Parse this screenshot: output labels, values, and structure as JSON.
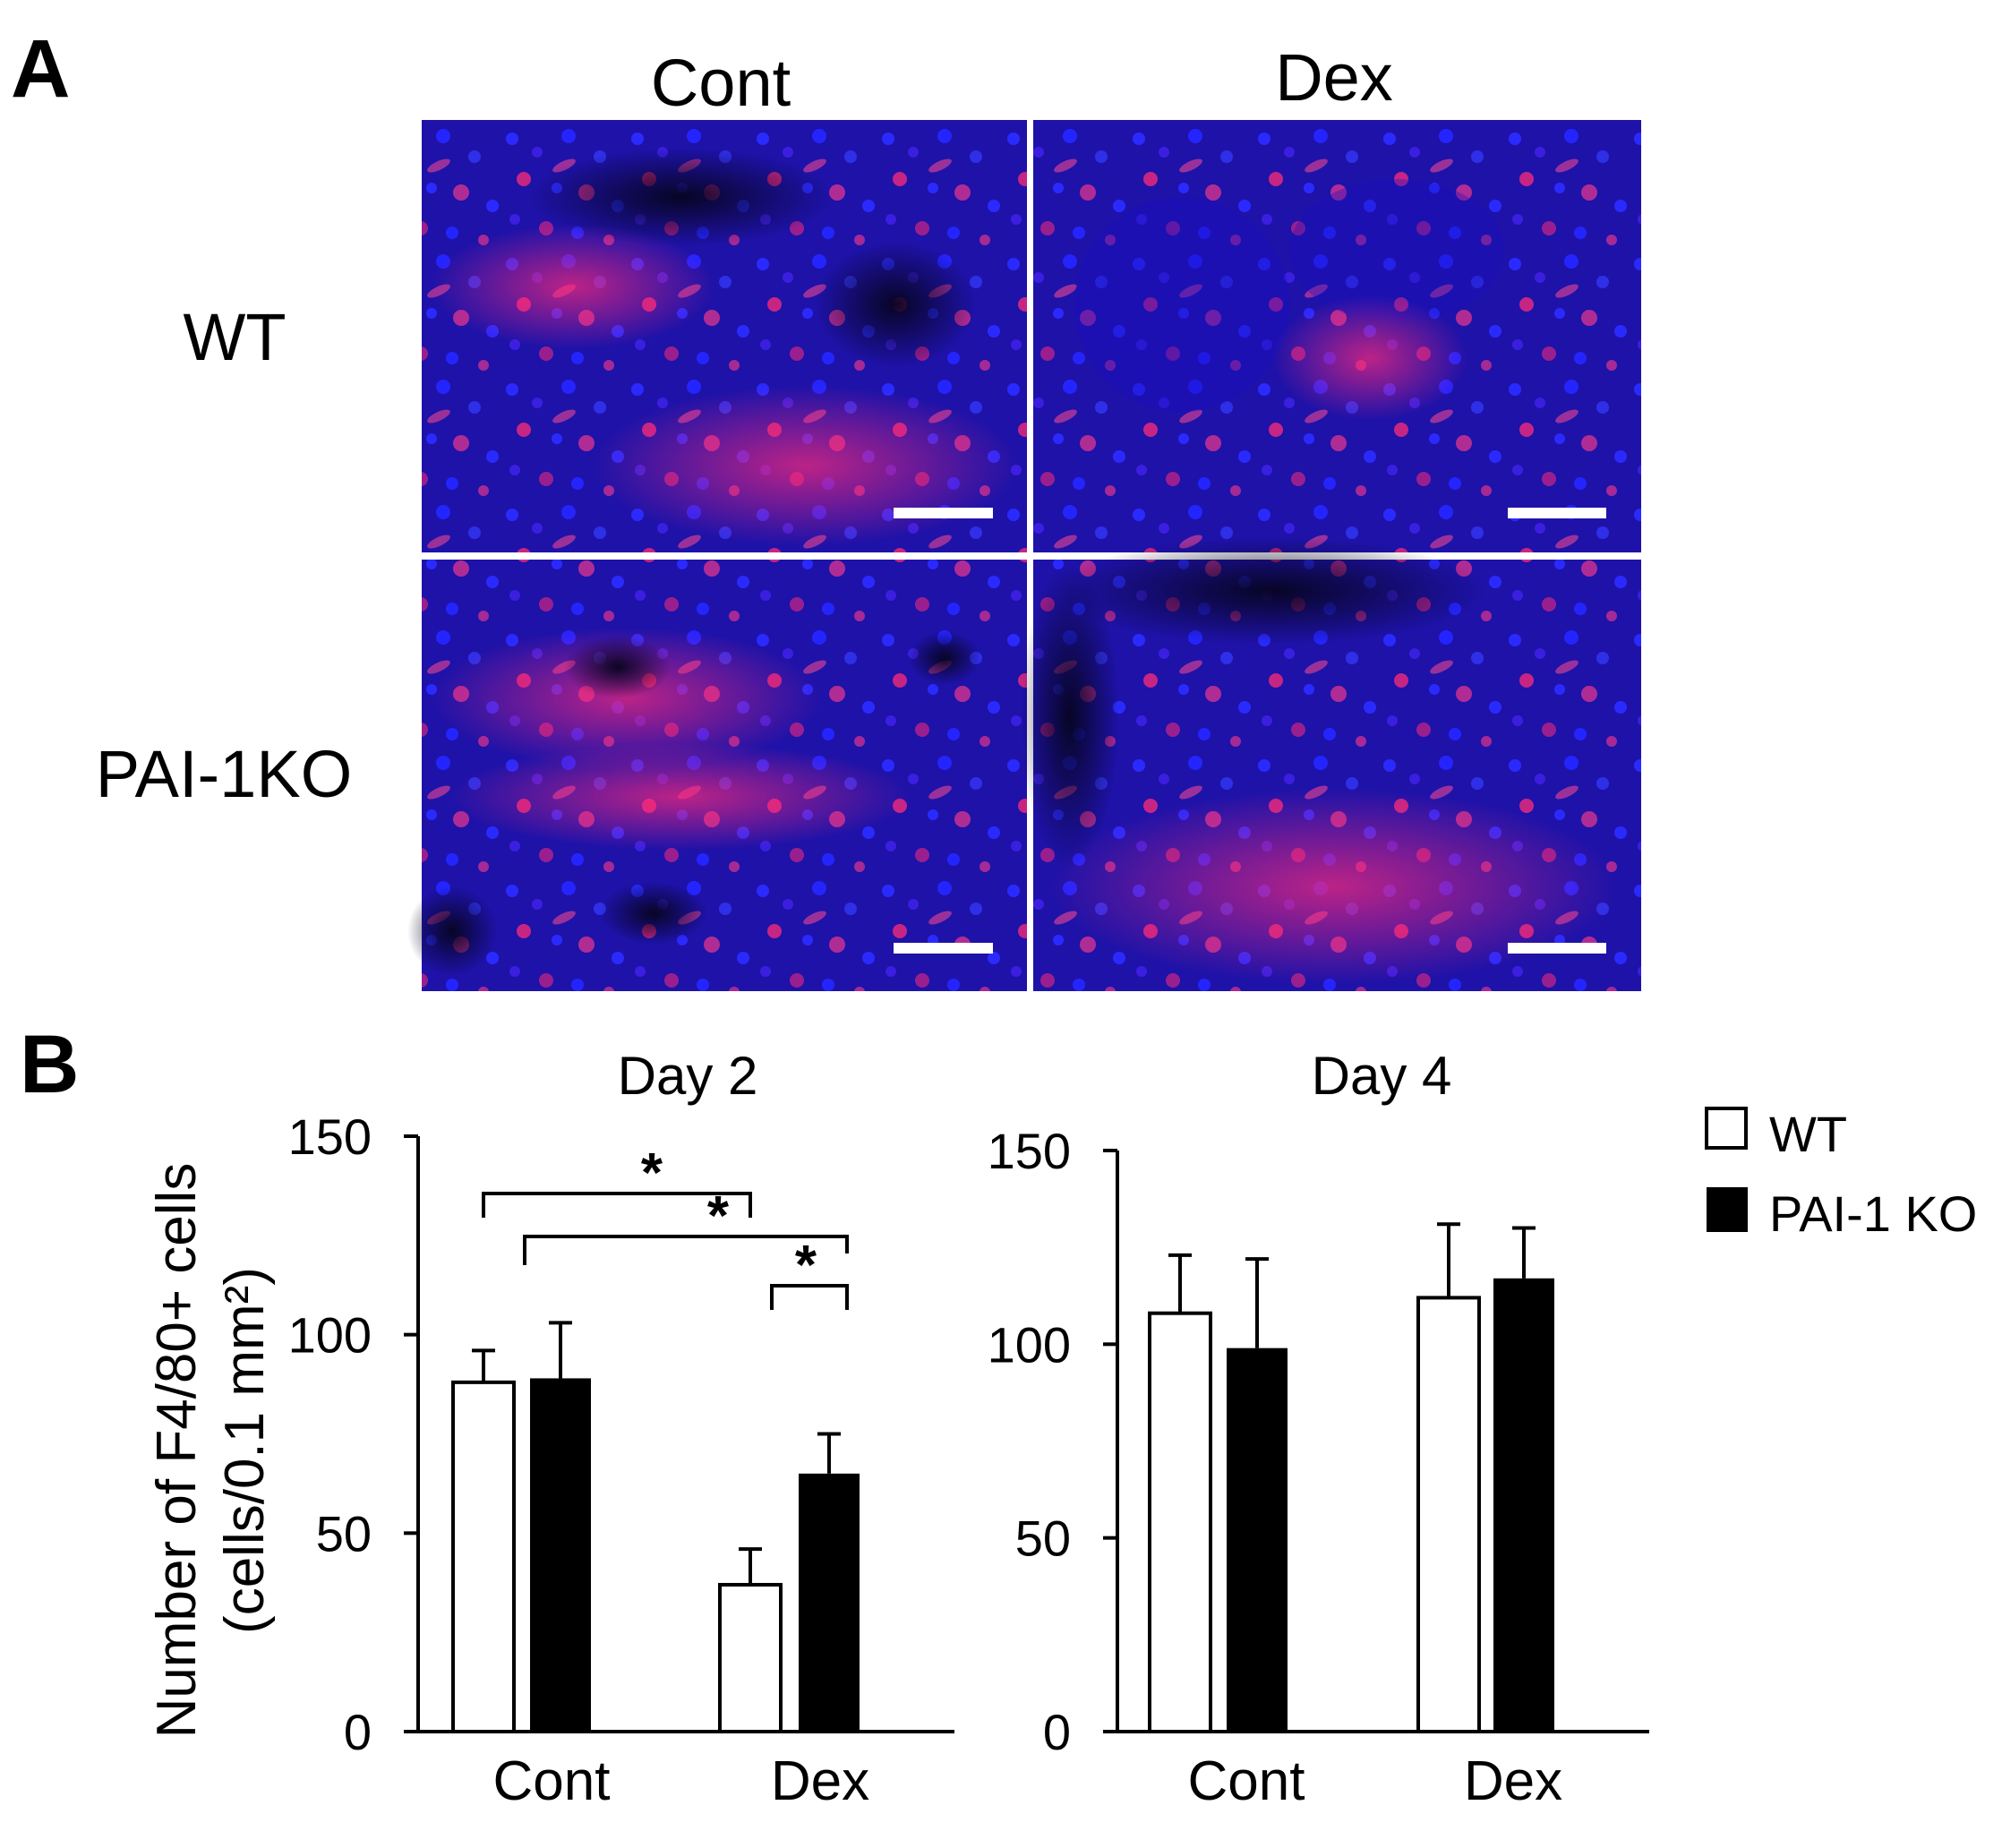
{
  "panel_a": {
    "letter": "A",
    "column_labels": [
      "Cont",
      "Dex"
    ],
    "row_labels": [
      "WT",
      "PAI-1KO"
    ],
    "colors": {
      "nuclei": "#1a1aff",
      "f4_80": "#ff2a78",
      "background": "#0a0830",
      "scale_bar": "#ffffff"
    }
  },
  "panel_b": {
    "letter": "B",
    "y_axis_label_line1": "Number of F4/80+ cells",
    "y_axis_label_line2": "(cells/0.1 mm²)",
    "legend": {
      "wt_label": "WT",
      "ko_label": "PAI-1 KO"
    },
    "significance_mark": "*"
  },
  "chart_data": [
    {
      "type": "bar",
      "title": "Day 2",
      "categories": [
        "Cont",
        "Dex"
      ],
      "series": [
        {
          "name": "WT",
          "values": [
            88,
            37
          ],
          "errors": [
            8,
            9
          ],
          "color": "#ffffff"
        },
        {
          "name": "PAI-1 KO",
          "values": [
            89,
            65
          ],
          "errors": [
            14,
            10
          ],
          "color": "#000000"
        }
      ],
      "ylim": [
        0,
        150
      ],
      "yticks": [
        0,
        50,
        100,
        150
      ],
      "significance": [
        {
          "from": "Cont WT",
          "to": "Dex WT",
          "label": "*"
        },
        {
          "from": "Cont PAI-1 KO",
          "to": "Dex PAI-1 KO",
          "label": "*"
        },
        {
          "from": "Dex WT",
          "to": "Dex PAI-1 KO",
          "label": "*"
        }
      ]
    },
    {
      "type": "bar",
      "title": "Day 4",
      "categories": [
        "Cont",
        "Dex"
      ],
      "series": [
        {
          "name": "WT",
          "values": [
            108,
            112
          ],
          "errors": [
            15,
            19
          ],
          "color": "#ffffff"
        },
        {
          "name": "PAI-1 KO",
          "values": [
            99,
            117
          ],
          "errors": [
            23,
            13
          ],
          "color": "#000000"
        }
      ],
      "ylim": [
        0,
        150
      ],
      "yticks": [
        0,
        50,
        100,
        150
      ]
    }
  ]
}
